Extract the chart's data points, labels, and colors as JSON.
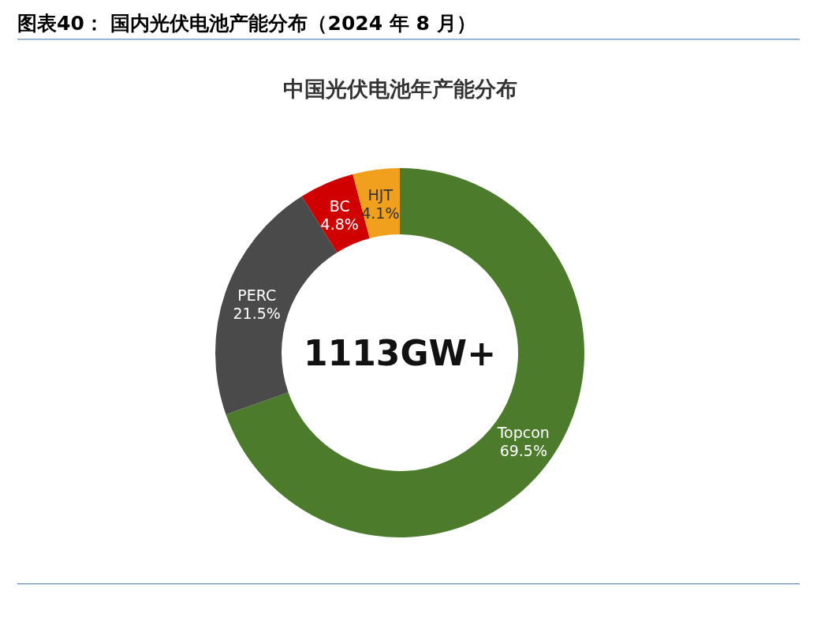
{
  "chart_data": {
    "type": "donut",
    "title": "图表40：  国内光伏电池产能分布（2024 年 8 月）",
    "subtitle": "中国光伏电池年产能分布",
    "categories": [
      "Topcon",
      "PERC",
      "BC",
      "HJT"
    ],
    "values": [
      69.5,
      21.5,
      4.8,
      4.1
    ],
    "value_labels": [
      "69.5%",
      "21.5%",
      "4.8%",
      "4.1%"
    ],
    "colors": [
      "#4b7b2b",
      "#4a4a4a",
      "#d00000",
      "#f0a01c"
    ],
    "annotations": [
      "1113GW+"
    ]
  }
}
